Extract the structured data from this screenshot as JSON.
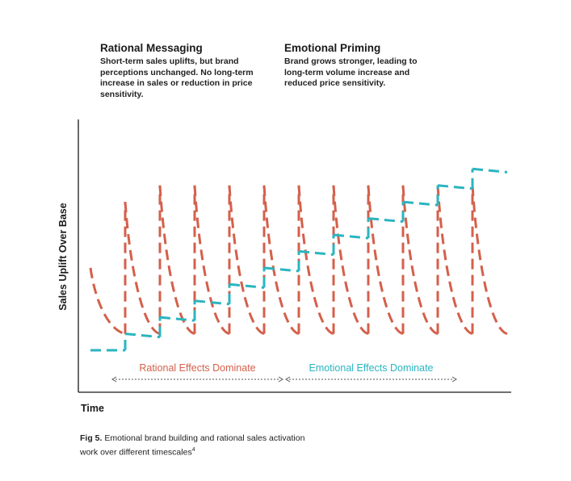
{
  "legend": {
    "rational": {
      "title": "Rational Messaging",
      "description": "Short-term sales uplifts, but brand perceptions unchanged. No long-term increase in sales or reduction in price sensitivity.",
      "color": "#D4604B"
    },
    "emotional": {
      "title": "Emotional Priming",
      "description": "Brand grows stronger, leading to long-term volume increase and reduced price sensitivity.",
      "color": "#2AB5BF"
    }
  },
  "caption": {
    "label": "Fig 5.",
    "text": " Emotional brand building and rational sales activation work over different timescales",
    "footnote": "4"
  },
  "chart_data": {
    "type": "line",
    "title": "",
    "xlabel": "Time",
    "ylabel": "Sales Uplift Over Base",
    "grid": false,
    "legend_position": "top",
    "line_style": "dashed",
    "series": [
      {
        "name": "Rational Messaging",
        "color": "#D4604B",
        "pattern": "repeated activation: sharp spike to peak followed by decay back to near baseline",
        "points": [
          [
            0,
            5
          ],
          [
            1,
            1
          ],
          [
            1,
            9
          ],
          [
            2,
            1
          ],
          [
            2,
            10
          ],
          [
            3,
            1
          ],
          [
            3,
            10
          ],
          [
            4,
            1
          ],
          [
            4,
            10
          ],
          [
            5,
            1
          ],
          [
            5,
            10
          ],
          [
            6,
            1
          ],
          [
            6,
            10
          ],
          [
            7,
            1
          ],
          [
            7,
            10
          ],
          [
            8,
            1
          ],
          [
            8,
            10
          ],
          [
            9,
            1
          ],
          [
            9,
            10
          ],
          [
            10,
            1
          ],
          [
            10,
            10
          ],
          [
            11,
            1
          ],
          [
            11,
            10
          ],
          [
            12,
            1
          ]
        ]
      },
      {
        "name": "Emotional Priming",
        "color": "#2AB5BF",
        "pattern": "step-wise cumulative growth; each activation lifts the base permanently",
        "points": [
          [
            0,
            0
          ],
          [
            1,
            0
          ],
          [
            1,
            1
          ],
          [
            2,
            0.8
          ],
          [
            2,
            2
          ],
          [
            3,
            1.8
          ],
          [
            3,
            3
          ],
          [
            4,
            2.8
          ],
          [
            4,
            4
          ],
          [
            5,
            3.8
          ],
          [
            5,
            5
          ],
          [
            6,
            4.8
          ],
          [
            6,
            6
          ],
          [
            7,
            5.8
          ],
          [
            7,
            7
          ],
          [
            8,
            6.8
          ],
          [
            8,
            8
          ],
          [
            9,
            7.8
          ],
          [
            9,
            9
          ],
          [
            10,
            8.8
          ],
          [
            10,
            10
          ],
          [
            11,
            9.8
          ],
          [
            11,
            11
          ],
          [
            12,
            10.8
          ]
        ]
      }
    ],
    "annotations": [
      {
        "text": "Rational Effects Dominate",
        "color": "#D4604B",
        "span": [
          1,
          6
        ]
      },
      {
        "text": "Emotional Effects Dominate",
        "color": "#2AB5BF",
        "span": [
          6,
          11
        ]
      }
    ],
    "xlim": [
      0,
      12
    ],
    "ylim": [
      -1,
      14
    ]
  }
}
